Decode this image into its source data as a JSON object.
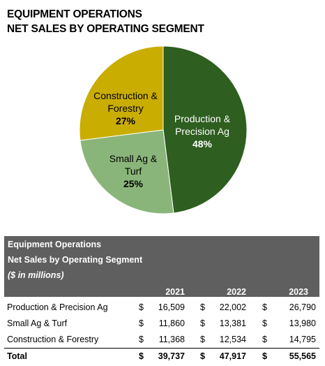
{
  "title_lines": [
    "EQUIPMENT OPERATIONS",
    "NET SALES BY OPERATING SEGMENT"
  ],
  "colors": {
    "production_precision_ag": "#2e5e20",
    "small_ag_turf": "#8ab57a",
    "construction_forestry": "#c9ad00",
    "table_header_bg": "#5f5f5f"
  },
  "chart_data": {
    "type": "pie",
    "title": "EQUIPMENT OPERATIONS NET SALES BY OPERATING SEGMENT",
    "slices": [
      {
        "label_lines": [
          "Production &",
          "Precision Ag"
        ],
        "value": 48,
        "pct_label": "48%",
        "label_color": "#ffffff"
      },
      {
        "label_lines": [
          "Small Ag &",
          "Turf"
        ],
        "value": 25,
        "pct_label": "25%",
        "label_color": "#000000"
      },
      {
        "label_lines": [
          "Construction &",
          "Forestry"
        ],
        "value": 27,
        "pct_label": "27%",
        "label_color": "#000000"
      }
    ]
  },
  "table": {
    "title": "Equipment Operations",
    "subtitle": "Net Sales by Operating Segment",
    "units": "($ in millions)",
    "currency_symbol": "$",
    "years": [
      "2021",
      "2022",
      "2023"
    ],
    "rows": [
      {
        "label": "Production & Precision Ag",
        "values": [
          "16,509",
          "22,002",
          "26,790"
        ]
      },
      {
        "label": "Small Ag & Turf",
        "values": [
          "11,860",
          "13,381",
          "13,980"
        ]
      },
      {
        "label": "Construction & Forestry",
        "values": [
          "11,368",
          "12,534",
          "14,795"
        ]
      }
    ],
    "total": {
      "label": "Total",
      "values": [
        "39,737",
        "47,917",
        "55,565"
      ]
    }
  }
}
